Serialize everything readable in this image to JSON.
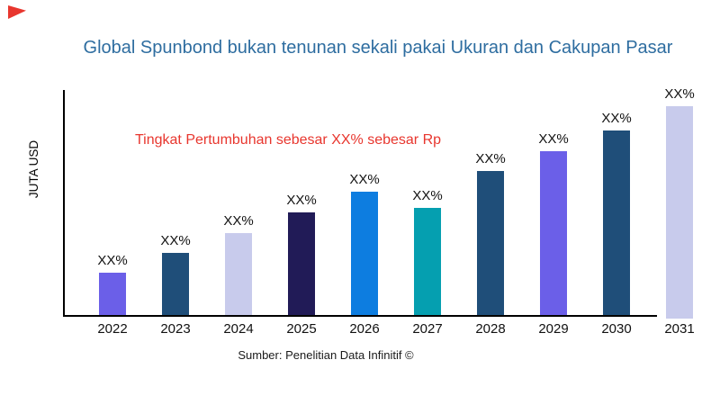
{
  "title": {
    "text": "Global Spunbond bukan tenunan sekali pakai Ukuran dan Cakupan Pasar",
    "color": "#2e6da0"
  },
  "annotation": {
    "text": "Tingkat Pertumbuhan sebesar XX% sebesar Rp",
    "color": "#e8362e"
  },
  "axes": {
    "y_label": "JUTA USD",
    "axis_color": "#000000"
  },
  "footer": {
    "source_text": "Sumber: Penelitian Data Infinitif ©"
  },
  "icons": {
    "corner_flag": {
      "name": "flag-icon",
      "color": "#e8362e"
    }
  },
  "chart_data": {
    "type": "bar",
    "title": "Global Spunbond bukan tenunan sekali pakai Ukuran dan Cakupan Pasar",
    "xlabel": "",
    "ylabel": "JUTA USD",
    "categories": [
      "2022",
      "2023",
      "2024",
      "2025",
      "2026",
      "2027",
      "2028",
      "2029",
      "2030",
      "2031"
    ],
    "values": [
      47,
      69,
      91,
      114,
      137,
      119,
      160,
      182,
      205,
      232
    ],
    "value_labels": [
      "XX%",
      "XX%",
      "XX%",
      "XX%",
      "XX%",
      "XX%",
      "XX%",
      "XX%",
      "XX%",
      "XX%"
    ],
    "bar_colors": [
      "#6b5fe8",
      "#1f4e79",
      "#c8cbec",
      "#211b57",
      "#0d7de0",
      "#059fb0",
      "#1f4e79",
      "#6b5fe8",
      "#1f4e79",
      "#c8cbec"
    ],
    "grid": false,
    "legend": false,
    "annotation": "Tingkat Pertumbuhan sebesar XX% sebesar Rp",
    "ylim_shown": false
  }
}
